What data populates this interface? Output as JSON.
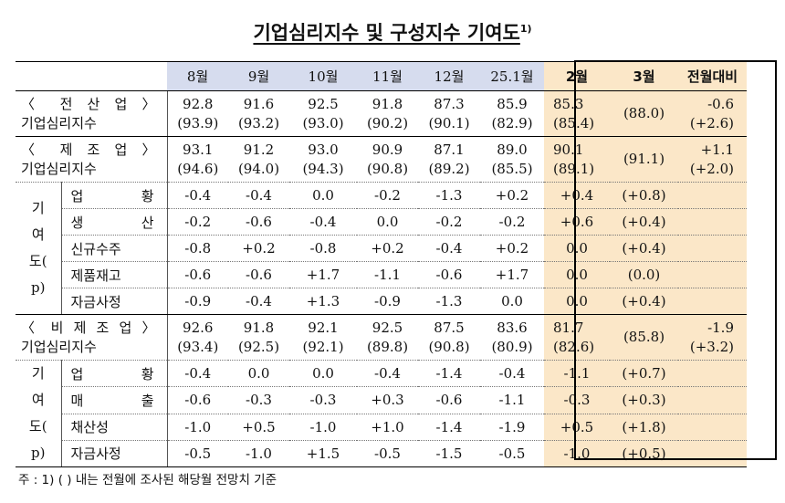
{
  "title": "기업심리지수 및 구성지수 기여도",
  "title_note_mark": "1)",
  "header": {
    "columns": [
      "8월",
      "9월",
      "10월",
      "11월",
      "12월",
      "25.1월",
      "2월",
      "3월",
      "전월대비"
    ]
  },
  "all_industry": {
    "label_line1": "〈 전 산 업 〉",
    "label_line2": "기업심리지수",
    "values": [
      "92.8",
      "91.6",
      "92.5",
      "91.8",
      "87.3",
      "85.9",
      "85.3",
      "",
      "-0.6"
    ],
    "prior": [
      "(93.9)",
      "(93.2)",
      "(93.0)",
      "(90.2)",
      "(90.1)",
      "(82.9)",
      "(85.4)",
      "(88.0)",
      "(+2.6)"
    ]
  },
  "manufacturing": {
    "label_line1": "〈 제 조 업 〉",
    "label_line2": "기업심리지수",
    "values": [
      "93.1",
      "91.2",
      "93.0",
      "90.9",
      "87.1",
      "89.0",
      "90.1",
      "",
      "+1.1"
    ],
    "prior": [
      "(94.6)",
      "(94.0)",
      "(94.3)",
      "(90.8)",
      "(89.2)",
      "(85.5)",
      "(89.1)",
      "(91.1)",
      "(+2.0)"
    ],
    "contrib_label": [
      "기",
      "여",
      "도(",
      "p)"
    ],
    "rows": [
      {
        "label": "업 황",
        "values": [
          "-0.4",
          "-0.4",
          "0.0",
          "-0.2",
          "-1.3",
          "+0.2",
          "+0.4",
          "(+0.8)",
          ""
        ]
      },
      {
        "label": "생 산",
        "values": [
          "-0.2",
          "-0.6",
          "-0.4",
          "0.0",
          "-0.2",
          "-0.2",
          "+0.6",
          "(+0.4)",
          ""
        ]
      },
      {
        "label": "신규수주",
        "values": [
          "-0.8",
          "+0.2",
          "-0.8",
          "+0.2",
          "-0.4",
          "+0.2",
          "0.0",
          "(+0.4)",
          ""
        ]
      },
      {
        "label": "제품재고",
        "values": [
          "-0.6",
          "-0.6",
          "+1.7",
          "-1.1",
          "-0.6",
          "+1.7",
          "0.0",
          "(0.0)",
          ""
        ]
      },
      {
        "label": "자금사정",
        "values": [
          "-0.9",
          "-0.4",
          "+1.3",
          "-0.9",
          "-1.3",
          "0.0",
          "0.0",
          "(+0.4)",
          ""
        ]
      }
    ]
  },
  "non_manufacturing": {
    "label_line1": "〈 비 제 조 업 〉",
    "label_line2": "기업심리지수",
    "values": [
      "92.6",
      "91.8",
      "92.1",
      "92.5",
      "87.5",
      "83.6",
      "81.7",
      "",
      "-1.9"
    ],
    "prior": [
      "(93.4)",
      "(92.5)",
      "(92.1)",
      "(89.8)",
      "(90.8)",
      "(80.9)",
      "(82.6)",
      "(85.8)",
      "(+3.2)"
    ],
    "contrib_label": [
      "기",
      "여",
      "도(",
      "p)"
    ],
    "rows": [
      {
        "label": "업 황",
        "values": [
          "-0.4",
          "0.0",
          "0.0",
          "-0.4",
          "-1.4",
          "-0.4",
          "-1.1",
          "(+0.7)",
          ""
        ]
      },
      {
        "label": "매 출",
        "values": [
          "-0.6",
          "-0.3",
          "-0.3",
          "+0.3",
          "-0.6",
          "-1.1",
          "-0.3",
          "(+0.3)",
          ""
        ]
      },
      {
        "label": "채산성",
        "values": [
          "-1.0",
          "+0.5",
          "-1.0",
          "+1.0",
          "-1.4",
          "-1.9",
          "+0.5",
          "(+1.8)",
          ""
        ]
      },
      {
        "label": "자금사정",
        "values": [
          "-0.5",
          "-1.0",
          "+1.5",
          "-0.5",
          "-1.5",
          "-0.5",
          "-1.0",
          "(+0.5)",
          ""
        ]
      }
    ]
  },
  "footnote": "주 : 1) (    ) 내는 전월에 조사된 해당월 전망치 기준",
  "colors": {
    "header_bg": "#d6dcee",
    "highlight_bg": "#fbe7c8"
  }
}
